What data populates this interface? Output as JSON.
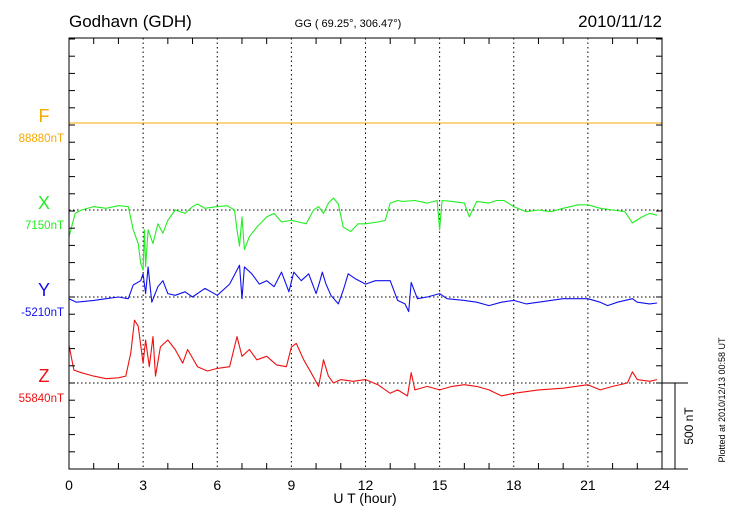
{
  "chart_data": {
    "type": "line",
    "title": "Godhavn (GDH)",
    "subtitle": "GG ( 69.25°, 306.47°)",
    "date": "2010/11/12",
    "xlabel": "U T (hour)",
    "xlim": [
      0,
      24
    ],
    "xticks": [
      "0",
      "3",
      "6",
      "9",
      "12",
      "15",
      "18",
      "21",
      "24"
    ],
    "grid": "dotted vertical every 3 h, dotted baseline per component",
    "scale_bar_label": "500 nT",
    "scale_bar_nT": 500,
    "plotted_note": "Plotted at 2010/12/13 00:58 UT",
    "series": [
      {
        "name": "F",
        "baseline_label": "88880nT",
        "color": "#f5a800",
        "x": [
          0,
          24
        ],
        "offset_nT": [
          0,
          0
        ]
      },
      {
        "name": "X",
        "baseline_label": "7150nT",
        "color": "#22ee22",
        "x": [
          0,
          0.25,
          0.5,
          1,
          1.5,
          2,
          2.4,
          2.6,
          2.8,
          2.9,
          3.0,
          3.05,
          3.1,
          3.2,
          3.4,
          3.6,
          3.8,
          4.0,
          4.3,
          4.7,
          5,
          5.2,
          5.5,
          6,
          6.4,
          6.7,
          6.8,
          6.9,
          7.0,
          7.1,
          7.3,
          7.6,
          8,
          8.3,
          8.6,
          9,
          9.3,
          9.6,
          9.9,
          10.1,
          10.3,
          10.5,
          10.7,
          10.9,
          11.1,
          11.4,
          11.7,
          12,
          12.5,
          12.8,
          13,
          13.3,
          13.5,
          14,
          14.5,
          14.9,
          15.0,
          15.1,
          15.5,
          16,
          16.2,
          16.5,
          17,
          17.3,
          17.6,
          18,
          18.5,
          19,
          19.5,
          20,
          20.6,
          21,
          21.5,
          22,
          22.5,
          22.8,
          23.2,
          23.5,
          23.8
        ],
        "offset_nT": [
          -155,
          -20,
          0,
          20,
          10,
          25,
          20,
          -115,
          -195,
          -310,
          -350,
          -115,
          -330,
          -115,
          -195,
          -80,
          -135,
          -60,
          0,
          -20,
          20,
          35,
          10,
          20,
          25,
          0,
          -115,
          -210,
          -40,
          -230,
          -155,
          -100,
          -40,
          -20,
          -70,
          -60,
          -70,
          -80,
          0,
          20,
          -20,
          40,
          70,
          35,
          -100,
          -125,
          -80,
          -80,
          -70,
          -60,
          40,
          55,
          50,
          55,
          40,
          55,
          -115,
          55,
          50,
          40,
          -40,
          50,
          40,
          55,
          55,
          20,
          -10,
          0,
          -10,
          10,
          30,
          30,
          10,
          0,
          -10,
          -75,
          -40,
          -20,
          -30
        ]
      },
      {
        "name": "Y",
        "baseline_label": "-5210nT",
        "color": "#1010ee",
        "x": [
          0,
          0.3,
          1,
          1.5,
          2,
          2.4,
          2.6,
          2.9,
          3.0,
          3.1,
          3.2,
          3.35,
          3.6,
          3.8,
          4,
          4.3,
          4.7,
          5,
          5.5,
          6,
          6.5,
          6.9,
          7.0,
          7.1,
          7.4,
          7.7,
          8,
          8.3,
          8.6,
          8.9,
          9.1,
          9.4,
          9.7,
          10.0,
          10.16,
          10.25,
          10.4,
          10.6,
          10.9,
          11.1,
          11.3,
          11.6,
          12,
          12.4,
          12.8,
          13.0,
          13.3,
          13.6,
          13.75,
          13.85,
          14.1,
          14.5,
          15,
          15.3,
          16,
          16.5,
          17,
          17.5,
          18,
          18.5,
          19,
          19.5,
          20,
          21,
          21.5,
          21.8,
          22.2,
          22.8,
          23,
          23.5,
          23.8
        ],
        "offset_nT": [
          -10,
          -30,
          -20,
          -10,
          0,
          -10,
          70,
          95,
          135,
          20,
          175,
          -30,
          60,
          95,
          20,
          10,
          30,
          0,
          50,
          10,
          75,
          185,
          -10,
          175,
          135,
          75,
          95,
          60,
          145,
          30,
          145,
          95,
          135,
          20,
          95,
          145,
          75,
          10,
          -40,
          40,
          135,
          105,
          75,
          95,
          95,
          95,
          -20,
          -40,
          -85,
          85,
          -10,
          0,
          20,
          -10,
          -20,
          -30,
          -50,
          -30,
          -20,
          -40,
          -30,
          -20,
          -10,
          -10,
          -30,
          -50,
          -30,
          -10,
          -30,
          -40,
          -35
        ]
      },
      {
        "name": "Z",
        "baseline_label": "55840nT",
        "color": "#ee1010",
        "x": [
          0,
          0.2,
          0.5,
          1,
          1.5,
          2,
          2.3,
          2.5,
          2.65,
          2.8,
          3.0,
          3.1,
          3.25,
          3.4,
          3.5,
          3.7,
          4,
          4.3,
          4.6,
          4.8,
          5.2,
          5.6,
          6,
          6.5,
          6.8,
          7.0,
          7.3,
          7.6,
          8,
          8.4,
          8.8,
          9.0,
          9.2,
          9.5,
          9.8,
          10.1,
          10.3,
          10.5,
          10.7,
          11,
          11.5,
          12,
          12.5,
          13,
          13.3,
          13.7,
          13.85,
          14,
          14.5,
          15,
          15.5,
          16,
          16.5,
          17,
          17.5,
          18,
          19,
          20,
          21,
          21.5,
          22,
          22.6,
          22.8,
          23.0,
          23.5,
          23.8
        ],
        "offset_nT": [
          220,
          75,
          60,
          40,
          25,
          30,
          40,
          175,
          365,
          330,
          115,
          250,
          95,
          270,
          40,
          210,
          250,
          195,
          115,
          195,
          95,
          70,
          85,
          95,
          270,
          155,
          195,
          135,
          155,
          105,
          95,
          210,
          230,
          135,
          60,
          -20,
          135,
          40,
          0,
          20,
          10,
          20,
          -10,
          -60,
          -40,
          -75,
          60,
          -40,
          -20,
          -40,
          -20,
          -10,
          -20,
          -40,
          -75,
          -60,
          -40,
          -30,
          -10,
          -40,
          -20,
          0,
          65,
          20,
          10,
          20
        ]
      }
    ]
  }
}
